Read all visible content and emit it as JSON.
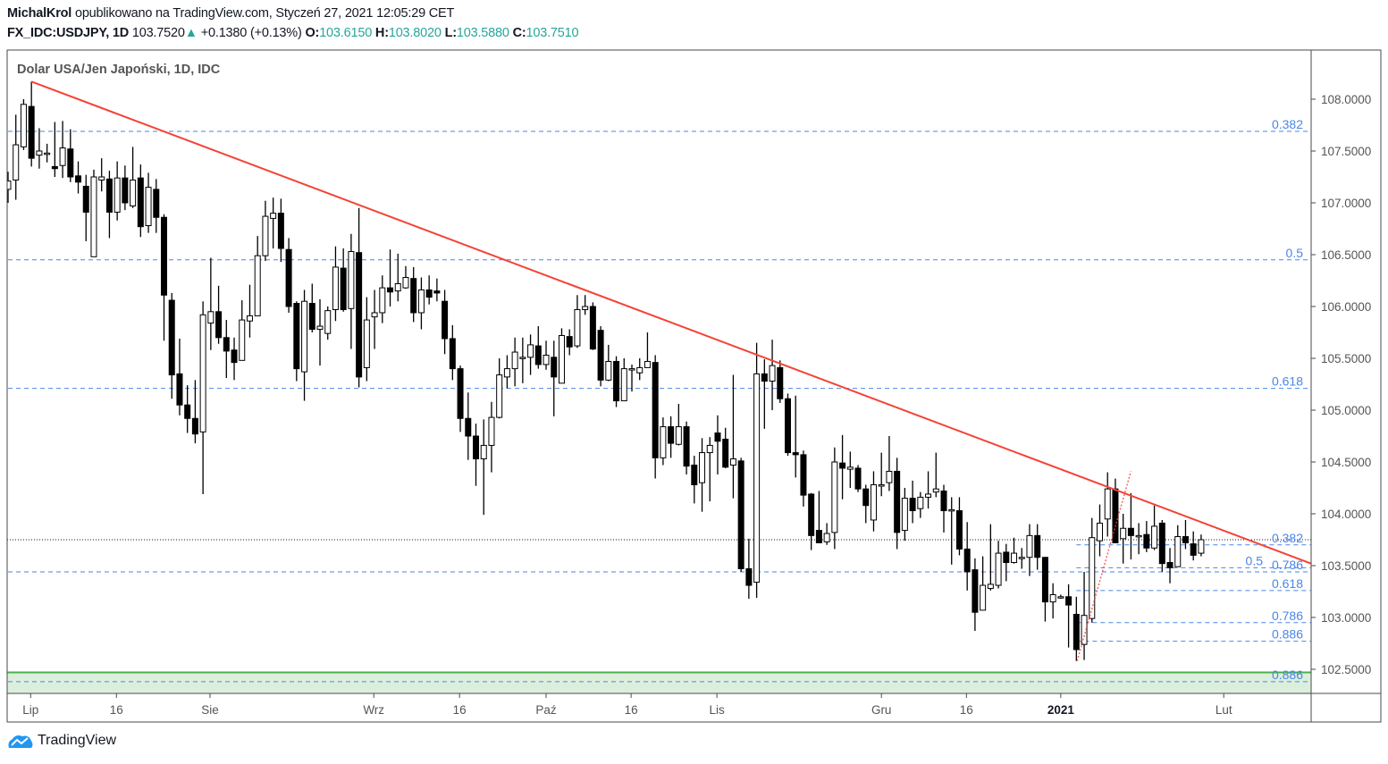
{
  "header": {
    "author": "MichalKrol",
    "published": " opublikowano na TradingView.com, Styczeń 27, 2021 12:05:29 CET",
    "symbol": "FX_IDC:USDJPY, 1D",
    "last_price": "103.7520",
    "change": "+0.1380 (+0.13%)",
    "open_label": "O:",
    "open": "103.6150",
    "high_label": "H:",
    "high": "103.8020",
    "low_label": "L:",
    "low": "103.5880",
    "close_label": "C:",
    "close": "103.7510",
    "up_color": "#26a69a"
  },
  "footer": {
    "brand": "TradingView",
    "brand_color": "#2196f3"
  },
  "chart_data": {
    "type": "candlestick",
    "title": "Dolar USA/Jen Japoński, 1D, IDC",
    "ylim": [
      102.27,
      108.47
    ],
    "y_ticks": [
      "108.0000",
      "107.5000",
      "107.0000",
      "106.5000",
      "106.0000",
      "105.5000",
      "105.0000",
      "104.5000",
      "104.0000",
      "103.5000",
      "103.0000",
      "102.5000"
    ],
    "y_tick_values": [
      108,
      107.5,
      107,
      106.5,
      106,
      105.5,
      105,
      104.5,
      104,
      103.5,
      103,
      102.5
    ],
    "x_ticks": [
      {
        "label": "Lip",
        "bar": 2.9
      },
      {
        "label": "16",
        "bar": 13.9
      },
      {
        "label": "Sie",
        "bar": 25.9
      },
      {
        "label": "Wrz",
        "bar": 46.9
      },
      {
        "label": "16",
        "bar": 57.9
      },
      {
        "label": "Paź",
        "bar": 69
      },
      {
        "label": "16",
        "bar": 79.9
      },
      {
        "label": "Lis",
        "bar": 90.9
      },
      {
        "label": "Gru",
        "bar": 112
      },
      {
        "label": "16",
        "bar": 122.9
      },
      {
        "label": "2021",
        "bar": 135,
        "bold": true
      },
      {
        "label": "Lut",
        "bar": 155.9
      }
    ],
    "ohlc_columns": [
      "open",
      "high",
      "low",
      "close"
    ],
    "ohlc": [
      [
        107.13,
        107.3,
        107.0,
        107.21
      ],
      [
        107.22,
        107.85,
        107.03,
        107.56
      ],
      [
        107.54,
        108.0,
        107.51,
        107.95
      ],
      [
        107.93,
        108.17,
        107.35,
        107.43
      ],
      [
        107.46,
        107.72,
        107.33,
        107.5
      ],
      [
        107.48,
        107.57,
        107.39,
        107.48
      ],
      [
        107.35,
        107.78,
        107.25,
        107.33
      ],
      [
        107.36,
        107.79,
        107.24,
        107.53
      ],
      [
        107.52,
        107.71,
        107.2,
        107.25
      ],
      [
        107.26,
        107.4,
        107.09,
        107.2
      ],
      [
        107.16,
        107.27,
        106.63,
        106.91
      ],
      [
        106.48,
        107.32,
        106.48,
        107.25
      ],
      [
        107.22,
        107.43,
        107.11,
        107.25
      ],
      [
        107.23,
        107.31,
        106.66,
        106.91
      ],
      [
        106.91,
        107.4,
        106.83,
        107.24
      ],
      [
        107.24,
        107.36,
        106.93,
        107.0
      ],
      [
        106.97,
        107.54,
        106.95,
        107.22
      ],
      [
        107.24,
        107.37,
        106.67,
        106.77
      ],
      [
        106.78,
        107.29,
        106.71,
        107.15
      ],
      [
        107.13,
        107.23,
        106.71,
        106.86
      ],
      [
        106.86,
        106.89,
        105.67,
        106.11
      ],
      [
        106.06,
        106.13,
        105.11,
        105.34
      ],
      [
        105.35,
        105.69,
        104.95,
        105.05
      ],
      [
        105.05,
        105.24,
        104.78,
        104.92
      ],
      [
        104.92,
        105.29,
        104.68,
        104.77
      ],
      [
        104.79,
        106.05,
        104.19,
        105.92
      ],
      [
        105.84,
        106.47,
        105.58,
        105.95
      ],
      [
        105.95,
        106.2,
        105.64,
        105.7
      ],
      [
        105.7,
        105.87,
        105.31,
        105.57
      ],
      [
        105.58,
        105.7,
        105.29,
        105.46
      ],
      [
        105.48,
        106.06,
        105.48,
        105.87
      ],
      [
        105.86,
        106.21,
        105.7,
        105.91
      ],
      [
        105.91,
        106.68,
        105.91,
        106.49
      ],
      [
        106.49,
        107.02,
        106.44,
        106.87
      ],
      [
        106.85,
        107.05,
        106.56,
        106.9
      ],
      [
        106.9,
        107.04,
        106.43,
        106.56
      ],
      [
        106.55,
        106.66,
        105.94,
        106.0
      ],
      [
        106.03,
        106.05,
        105.28,
        105.4
      ],
      [
        105.37,
        106.16,
        105.09,
        106.05
      ],
      [
        106.03,
        106.22,
        105.75,
        105.78
      ],
      [
        105.78,
        106.07,
        105.43,
        105.81
      ],
      [
        105.74,
        106.0,
        105.68,
        105.96
      ],
      [
        105.97,
        106.58,
        105.86,
        106.38
      ],
      [
        106.37,
        106.56,
        105.95,
        105.97
      ],
      [
        105.98,
        106.7,
        105.59,
        106.53
      ],
      [
        106.52,
        106.95,
        105.22,
        105.32
      ],
      [
        105.41,
        106.09,
        105.28,
        105.87
      ],
      [
        105.9,
        106.16,
        105.59,
        105.94
      ],
      [
        105.94,
        106.3,
        105.84,
        106.18
      ],
      [
        106.18,
        106.55,
        106.0,
        106.14
      ],
      [
        106.15,
        106.51,
        106.05,
        106.22
      ],
      [
        106.18,
        106.39,
        106.17,
        106.28
      ],
      [
        106.27,
        106.38,
        105.85,
        105.94
      ],
      [
        105.94,
        106.28,
        105.78,
        106.16
      ],
      [
        106.16,
        106.3,
        106.02,
        106.09
      ],
      [
        106.15,
        106.27,
        106.05,
        106.13
      ],
      [
        106.05,
        106.16,
        105.54,
        105.69
      ],
      [
        105.69,
        105.82,
        105.29,
        105.4
      ],
      [
        105.4,
        105.43,
        104.79,
        104.92
      ],
      [
        104.92,
        105.17,
        104.52,
        104.75
      ],
      [
        104.75,
        104.87,
        104.27,
        104.53
      ],
      [
        104.53,
        104.91,
        103.99,
        104.66
      ],
      [
        104.66,
        105.08,
        104.4,
        104.93
      ],
      [
        104.93,
        105.5,
        104.92,
        105.34
      ],
      [
        105.32,
        105.53,
        105.21,
        105.4
      ],
      [
        105.4,
        105.7,
        105.23,
        105.56
      ],
      [
        105.51,
        105.7,
        105.26,
        105.51
      ],
      [
        105.51,
        105.73,
        105.34,
        105.63
      ],
      [
        105.62,
        105.81,
        105.4,
        105.44
      ],
      [
        105.44,
        105.67,
        105.39,
        105.53
      ],
      [
        105.51,
        105.67,
        104.94,
        105.32
      ],
      [
        105.26,
        105.79,
        105.26,
        105.72
      ],
      [
        105.71,
        105.78,
        105.53,
        105.61
      ],
      [
        105.62,
        106.11,
        105.6,
        105.97
      ],
      [
        105.97,
        106.11,
        105.92,
        106.0
      ],
      [
        106.0,
        106.04,
        105.58,
        105.59
      ],
      [
        105.77,
        105.81,
        105.23,
        105.29
      ],
      [
        105.29,
        105.63,
        105.28,
        105.47
      ],
      [
        105.47,
        105.52,
        105.03,
        105.09
      ],
      [
        105.09,
        105.5,
        105.09,
        105.4
      ],
      [
        105.4,
        105.44,
        105.18,
        105.4
      ],
      [
        105.36,
        105.5,
        105.29,
        105.41
      ],
      [
        105.41,
        105.75,
        105.41,
        105.47
      ],
      [
        105.46,
        105.53,
        104.34,
        104.54
      ],
      [
        104.54,
        104.93,
        104.47,
        104.84
      ],
      [
        104.84,
        104.94,
        104.54,
        104.68
      ],
      [
        104.67,
        105.06,
        104.66,
        104.84
      ],
      [
        104.84,
        104.89,
        104.38,
        104.46
      ],
      [
        104.47,
        104.56,
        104.1,
        104.28
      ],
      [
        104.3,
        104.73,
        104.02,
        104.59
      ],
      [
        104.59,
        104.74,
        104.12,
        104.66
      ],
      [
        104.78,
        104.95,
        104.38,
        104.7
      ],
      [
        104.72,
        104.83,
        104.44,
        104.45
      ],
      [
        104.47,
        105.34,
        104.15,
        104.53
      ],
      [
        104.51,
        104.54,
        103.44,
        103.47
      ],
      [
        103.47,
        103.76,
        103.18,
        103.31
      ],
      [
        103.34,
        105.65,
        103.19,
        105.35
      ],
      [
        105.35,
        105.49,
        104.82,
        105.28
      ],
      [
        105.28,
        105.68,
        105.0,
        105.43
      ],
      [
        105.41,
        105.48,
        105.07,
        105.11
      ],
      [
        105.11,
        105.16,
        104.56,
        104.59
      ],
      [
        104.59,
        105.14,
        104.35,
        104.57
      ],
      [
        104.57,
        104.61,
        104.07,
        104.18
      ],
      [
        104.19,
        104.2,
        103.65,
        103.79
      ],
      [
        103.84,
        104.22,
        103.72,
        103.72
      ],
      [
        103.73,
        103.91,
        103.7,
        103.81
      ],
      [
        103.82,
        104.64,
        103.66,
        104.5
      ],
      [
        104.49,
        104.76,
        104.14,
        104.44
      ],
      [
        104.43,
        104.6,
        104.25,
        104.45
      ],
      [
        104.44,
        104.47,
        104.21,
        104.24
      ],
      [
        104.24,
        104.28,
        103.91,
        104.08
      ],
      [
        103.94,
        104.41,
        103.83,
        104.28
      ],
      [
        104.28,
        104.59,
        104.17,
        104.28
      ],
      [
        104.3,
        104.75,
        104.22,
        104.41
      ],
      [
        104.41,
        104.54,
        103.66,
        103.82
      ],
      [
        103.84,
        104.25,
        103.74,
        104.15
      ],
      [
        104.15,
        104.32,
        103.91,
        104.03
      ],
      [
        104.05,
        104.21,
        103.96,
        104.16
      ],
      [
        104.16,
        104.41,
        104.05,
        104.19
      ],
      [
        104.21,
        104.59,
        104.16,
        104.24
      ],
      [
        104.22,
        104.28,
        103.82,
        104.03
      ],
      [
        104.04,
        104.16,
        103.51,
        104.04
      ],
      [
        104.03,
        104.16,
        103.6,
        103.66
      ],
      [
        103.66,
        103.92,
        103.26,
        103.44
      ],
      [
        103.46,
        103.57,
        102.87,
        103.05
      ],
      [
        103.07,
        103.59,
        103.07,
        103.31
      ],
      [
        103.28,
        103.9,
        103.26,
        103.32
      ],
      [
        103.31,
        103.74,
        103.28,
        103.62
      ],
      [
        103.63,
        103.71,
        103.35,
        103.53
      ],
      [
        103.53,
        103.77,
        103.52,
        103.62
      ],
      [
        103.58,
        103.67,
        103.47,
        103.58
      ],
      [
        103.58,
        103.9,
        103.4,
        103.79
      ],
      [
        103.79,
        103.9,
        103.46,
        103.58
      ],
      [
        103.58,
        103.58,
        102.96,
        103.15
      ],
      [
        103.15,
        103.33,
        102.99,
        103.22
      ],
      [
        103.2,
        103.22,
        103.18,
        103.2
      ],
      [
        103.2,
        103.32,
        102.71,
        103.12
      ],
      [
        103.03,
        103.2,
        102.58,
        102.69
      ],
      [
        102.74,
        103.44,
        102.59,
        103.02
      ],
      [
        102.99,
        103.96,
        102.95,
        103.77
      ],
      [
        103.74,
        104.09,
        103.59,
        103.91
      ],
      [
        103.95,
        104.4,
        103.78,
        104.24
      ],
      [
        104.24,
        104.34,
        103.72,
        103.72
      ],
      [
        103.76,
        104.0,
        103.52,
        103.86
      ],
      [
        103.86,
        104.2,
        103.56,
        103.79
      ],
      [
        103.79,
        103.91,
        103.61,
        103.79
      ],
      [
        103.8,
        103.93,
        103.63,
        103.67
      ],
      [
        103.67,
        104.08,
        103.65,
        103.88
      ],
      [
        103.91,
        103.94,
        103.44,
        103.52
      ],
      [
        103.53,
        103.67,
        103.33,
        103.48
      ],
      [
        103.49,
        103.89,
        103.49,
        103.78
      ],
      [
        103.78,
        103.94,
        103.66,
        103.72
      ],
      [
        103.71,
        103.83,
        103.55,
        103.6
      ],
      [
        103.62,
        103.8,
        103.59,
        103.75
      ]
    ],
    "trendline": {
      "color": "#f44336",
      "from": {
        "bar": 3,
        "price": 108.17
      },
      "to": {
        "bar": 167.1,
        "price": 103.52
      }
    },
    "impulse_line": {
      "color": "#f44336",
      "style": "dotted",
      "from": {
        "bar": 137.1,
        "price": 102.58
      },
      "to": {
        "bar": 144,
        "price": 104.41
      }
    },
    "current_price_line": 103.75,
    "fib_major": {
      "start_bar": 0,
      "levels": [
        {
          "label": "0.382",
          "price": 107.69
        },
        {
          "label": "0.5",
          "price": 106.45
        },
        {
          "label": "0.618",
          "price": 105.21
        },
        {
          "label": "0.786",
          "price": 103.44
        },
        {
          "label": "0.886",
          "price": 102.38
        }
      ]
    },
    "fib_minor": {
      "start_bar": 137,
      "levels": [
        {
          "label": "0.382",
          "price": 103.7
        },
        {
          "label": "0.5",
          "price": 103.48
        },
        {
          "label": "0.618",
          "price": 103.26
        },
        {
          "label": "0.786",
          "price": 102.95
        },
        {
          "label": "0.886",
          "price": 102.77
        }
      ]
    },
    "support_zone": {
      "from": 102.27,
      "to": 102.47,
      "border": "#4caf50",
      "fill": "#dcefdc"
    },
    "fib_color": "#4a86e8"
  }
}
